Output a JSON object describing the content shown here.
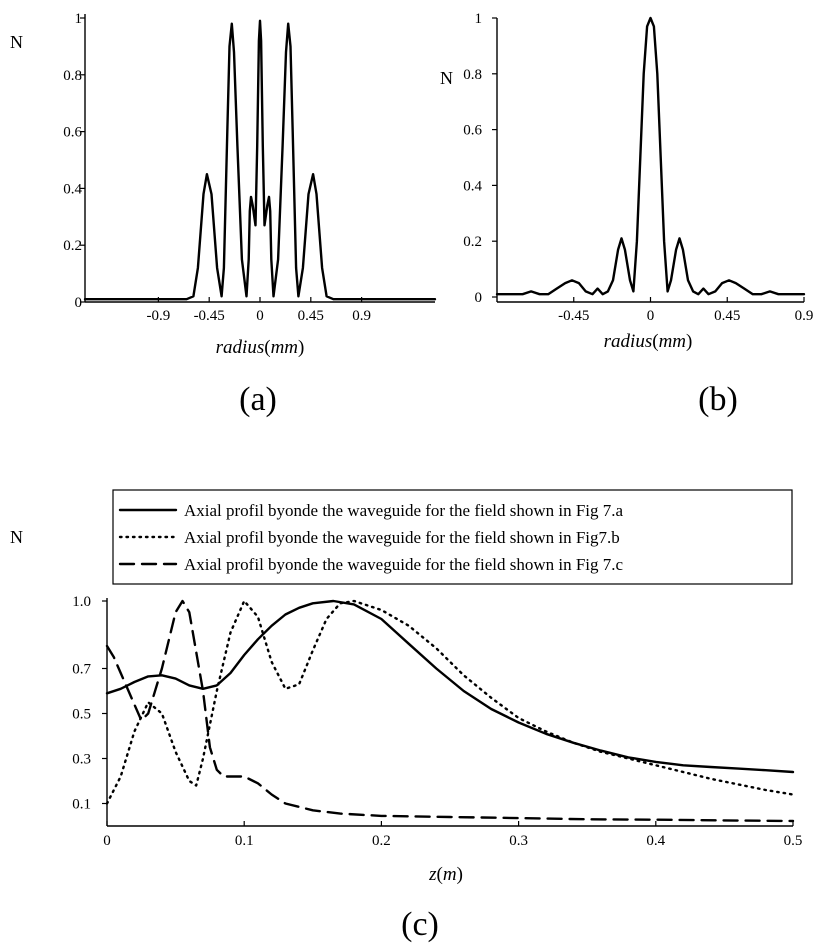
{
  "chart_data": [
    {
      "id": "a",
      "type": "line",
      "caption": "(a)",
      "ylabel": "N",
      "xlabel_var": "radius",
      "xlabel_unit": "mm",
      "xlim": [
        -1.55,
        1.55
      ],
      "ylim": [
        0,
        1
      ],
      "x_ticks": [
        -0.9,
        -0.45,
        0,
        0.45,
        0.9
      ],
      "x_tick_labels": [
        "-0.9",
        "-0.45",
        "0",
        "0.45",
        "0.9"
      ],
      "y_ticks": [
        0,
        0.2,
        0.4,
        0.6,
        0.8,
        1
      ],
      "y_tick_labels": [
        "0",
        "0.2",
        "0.4",
        "0.6",
        "0.8",
        "1"
      ],
      "series": [
        {
          "style": "solid",
          "points": [
            [
              -1.55,
              0.01
            ],
            [
              -0.65,
              0.01
            ],
            [
              -0.59,
              0.02
            ],
            [
              -0.55,
              0.12
            ],
            [
              -0.5,
              0.38
            ],
            [
              -0.47,
              0.45
            ],
            [
              -0.43,
              0.38
            ],
            [
              -0.38,
              0.12
            ],
            [
              -0.34,
              0.02
            ],
            [
              -0.32,
              0.12
            ],
            [
              -0.29,
              0.6
            ],
            [
              -0.27,
              0.9
            ],
            [
              -0.25,
              0.98
            ],
            [
              -0.23,
              0.88
            ],
            [
              -0.2,
              0.55
            ],
            [
              -0.16,
              0.15
            ],
            [
              -0.12,
              0.02
            ],
            [
              -0.1,
              0.15
            ],
            [
              -0.09,
              0.32
            ],
            [
              -0.08,
              0.37
            ],
            [
              -0.065,
              0.34
            ],
            [
              -0.04,
              0.27
            ],
            [
              -0.025,
              0.55
            ],
            [
              -0.01,
              0.92
            ],
            [
              0,
              0.99
            ],
            [
              0.01,
              0.92
            ],
            [
              0.025,
              0.55
            ],
            [
              0.04,
              0.27
            ],
            [
              0.065,
              0.34
            ],
            [
              0.08,
              0.37
            ],
            [
              0.09,
              0.32
            ],
            [
              0.1,
              0.15
            ],
            [
              0.12,
              0.02
            ],
            [
              0.16,
              0.15
            ],
            [
              0.2,
              0.55
            ],
            [
              0.23,
              0.88
            ],
            [
              0.25,
              0.98
            ],
            [
              0.27,
              0.9
            ],
            [
              0.29,
              0.6
            ],
            [
              0.32,
              0.12
            ],
            [
              0.34,
              0.02
            ],
            [
              0.38,
              0.12
            ],
            [
              0.43,
              0.38
            ],
            [
              0.47,
              0.45
            ],
            [
              0.5,
              0.38
            ],
            [
              0.55,
              0.12
            ],
            [
              0.59,
              0.02
            ],
            [
              0.65,
              0.01
            ],
            [
              1.55,
              0.01
            ]
          ]
        }
      ]
    },
    {
      "id": "b",
      "type": "line",
      "caption": "(b)",
      "ylabel": "N",
      "xlabel_var": "radius",
      "xlabel_unit": "mm",
      "xlim": [
        -0.9,
        0.9
      ],
      "ylim": [
        0,
        1
      ],
      "x_ticks": [
        -0.45,
        0,
        0.45,
        0.9
      ],
      "x_tick_labels": [
        "-0.45",
        "0",
        "0.45",
        "0.9"
      ],
      "y_ticks": [
        0,
        0.2,
        0.4,
        0.6,
        0.8,
        1
      ],
      "y_tick_labels": [
        "0",
        "0.2",
        "0.4",
        "0.6",
        "0.8",
        "1"
      ],
      "series": [
        {
          "style": "solid",
          "points": [
            [
              -0.9,
              0.01
            ],
            [
              -0.75,
              0.01
            ],
            [
              -0.7,
              0.02
            ],
            [
              -0.65,
              0.01
            ],
            [
              -0.6,
              0.01
            ],
            [
              -0.55,
              0.03
            ],
            [
              -0.5,
              0.05
            ],
            [
              -0.46,
              0.06
            ],
            [
              -0.42,
              0.05
            ],
            [
              -0.38,
              0.02
            ],
            [
              -0.34,
              0.01
            ],
            [
              -0.31,
              0.03
            ],
            [
              -0.28,
              0.01
            ],
            [
              -0.25,
              0.02
            ],
            [
              -0.22,
              0.06
            ],
            [
              -0.19,
              0.17
            ],
            [
              -0.17,
              0.21
            ],
            [
              -0.15,
              0.17
            ],
            [
              -0.12,
              0.06
            ],
            [
              -0.1,
              0.02
            ],
            [
              -0.08,
              0.2
            ],
            [
              -0.06,
              0.5
            ],
            [
              -0.04,
              0.8
            ],
            [
              -0.02,
              0.97
            ],
            [
              0,
              1.0
            ],
            [
              0.02,
              0.97
            ],
            [
              0.04,
              0.8
            ],
            [
              0.06,
              0.5
            ],
            [
              0.08,
              0.2
            ],
            [
              0.1,
              0.02
            ],
            [
              0.12,
              0.06
            ],
            [
              0.15,
              0.17
            ],
            [
              0.17,
              0.21
            ],
            [
              0.19,
              0.17
            ],
            [
              0.22,
              0.06
            ],
            [
              0.25,
              0.02
            ],
            [
              0.28,
              0.01
            ],
            [
              0.31,
              0.03
            ],
            [
              0.34,
              0.01
            ],
            [
              0.38,
              0.02
            ],
            [
              0.42,
              0.05
            ],
            [
              0.46,
              0.06
            ],
            [
              0.5,
              0.05
            ],
            [
              0.55,
              0.03
            ],
            [
              0.6,
              0.01
            ],
            [
              0.65,
              0.01
            ],
            [
              0.7,
              0.02
            ],
            [
              0.75,
              0.01
            ],
            [
              0.9,
              0.01
            ]
          ]
        }
      ]
    },
    {
      "id": "c",
      "type": "line",
      "caption": "(c)",
      "ylabel": "N",
      "xlabel_var": "z",
      "xlabel_unit": "m",
      "xlim": [
        0,
        0.5
      ],
      "ylim": [
        0,
        1
      ],
      "x_ticks": [
        0,
        0.1,
        0.2,
        0.3,
        0.4,
        0.5
      ],
      "x_tick_labels": [
        "0",
        "0.1",
        "0.2",
        "0.3",
        "0.4",
        "0.5"
      ],
      "y_ticks": [
        0.1,
        0.3,
        0.5,
        0.7,
        1.0
      ],
      "y_tick_labels": [
        "0.1",
        "0.3",
        "0.5",
        "0.7",
        "1.0"
      ],
      "legend_position": "top",
      "series": [
        {
          "name": "Axial profil byonde the waveguide for the field shown in Fig 7.a",
          "style": "solid",
          "points": [
            [
              0,
              0.59
            ],
            [
              0.01,
              0.61
            ],
            [
              0.02,
              0.64
            ],
            [
              0.03,
              0.665
            ],
            [
              0.04,
              0.67
            ],
            [
              0.05,
              0.655
            ],
            [
              0.06,
              0.625
            ],
            [
              0.07,
              0.61
            ],
            [
              0.08,
              0.625
            ],
            [
              0.09,
              0.68
            ],
            [
              0.1,
              0.76
            ],
            [
              0.11,
              0.83
            ],
            [
              0.12,
              0.89
            ],
            [
              0.13,
              0.94
            ],
            [
              0.14,
              0.97
            ],
            [
              0.15,
              0.99
            ],
            [
              0.165,
              1.0
            ],
            [
              0.18,
              0.985
            ],
            [
              0.2,
              0.92
            ],
            [
              0.22,
              0.81
            ],
            [
              0.24,
              0.7
            ],
            [
              0.26,
              0.6
            ],
            [
              0.28,
              0.52
            ],
            [
              0.3,
              0.46
            ],
            [
              0.32,
              0.41
            ],
            [
              0.34,
              0.37
            ],
            [
              0.36,
              0.335
            ],
            [
              0.38,
              0.305
            ],
            [
              0.4,
              0.285
            ],
            [
              0.42,
              0.27
            ],
            [
              0.44,
              0.262
            ],
            [
              0.46,
              0.255
            ],
            [
              0.48,
              0.248
            ],
            [
              0.5,
              0.24
            ]
          ]
        },
        {
          "name": "Axial profil byonde the waveguide for the field shown in Fig7.b",
          "style": "dotted",
          "points": [
            [
              0,
              0.1
            ],
            [
              0.01,
              0.22
            ],
            [
              0.02,
              0.42
            ],
            [
              0.03,
              0.55
            ],
            [
              0.04,
              0.5
            ],
            [
              0.05,
              0.33
            ],
            [
              0.06,
              0.2
            ],
            [
              0.065,
              0.18
            ],
            [
              0.07,
              0.3
            ],
            [
              0.08,
              0.6
            ],
            [
              0.09,
              0.86
            ],
            [
              0.1,
              1.0
            ],
            [
              0.11,
              0.93
            ],
            [
              0.12,
              0.73
            ],
            [
              0.13,
              0.61
            ],
            [
              0.14,
              0.63
            ],
            [
              0.15,
              0.78
            ],
            [
              0.16,
              0.92
            ],
            [
              0.17,
              0.99
            ],
            [
              0.18,
              1.0
            ],
            [
              0.2,
              0.96
            ],
            [
              0.22,
              0.89
            ],
            [
              0.24,
              0.79
            ],
            [
              0.26,
              0.67
            ],
            [
              0.28,
              0.57
            ],
            [
              0.3,
              0.48
            ],
            [
              0.32,
              0.42
            ],
            [
              0.34,
              0.37
            ],
            [
              0.36,
              0.33
            ],
            [
              0.38,
              0.3
            ],
            [
              0.4,
              0.27
            ],
            [
              0.42,
              0.24
            ],
            [
              0.44,
              0.21
            ],
            [
              0.46,
              0.185
            ],
            [
              0.48,
              0.16
            ],
            [
              0.5,
              0.14
            ]
          ]
        },
        {
          "name": "Axial profil byonde the waveguide for the field shown in Fig 7.c",
          "style": "dashed",
          "points": [
            [
              0,
              0.8
            ],
            [
              0.005,
              0.75
            ],
            [
              0.01,
              0.68
            ],
            [
              0.02,
              0.54
            ],
            [
              0.025,
              0.47
            ],
            [
              0.03,
              0.5
            ],
            [
              0.04,
              0.7
            ],
            [
              0.05,
              0.95
            ],
            [
              0.055,
              1.0
            ],
            [
              0.06,
              0.95
            ],
            [
              0.07,
              0.6
            ],
            [
              0.075,
              0.35
            ],
            [
              0.08,
              0.25
            ],
            [
              0.085,
              0.22
            ],
            [
              0.1,
              0.22
            ],
            [
              0.11,
              0.19
            ],
            [
              0.12,
              0.14
            ],
            [
              0.13,
              0.1
            ],
            [
              0.14,
              0.085
            ],
            [
              0.15,
              0.07
            ],
            [
              0.17,
              0.055
            ],
            [
              0.2,
              0.045
            ],
            [
              0.25,
              0.04
            ],
            [
              0.3,
              0.035
            ],
            [
              0.35,
              0.03
            ],
            [
              0.4,
              0.028
            ],
            [
              0.45,
              0.025
            ],
            [
              0.5,
              0.022
            ]
          ]
        }
      ]
    }
  ]
}
